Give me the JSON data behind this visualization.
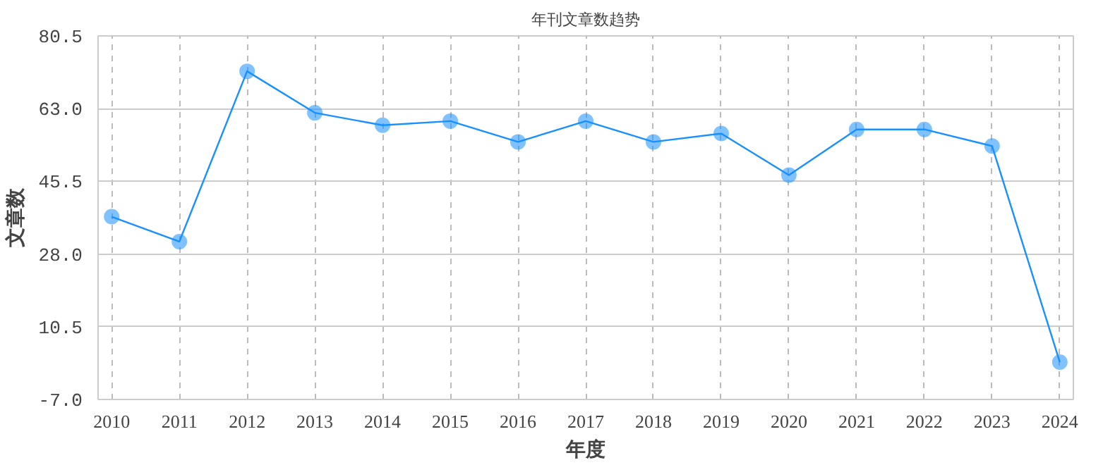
{
  "chart_data": {
    "type": "line",
    "title": "年刊文章数趋势",
    "xlabel": "年度",
    "ylabel": "文章数",
    "categories": [
      "2010",
      "2011",
      "2012",
      "2013",
      "2014",
      "2015",
      "2016",
      "2017",
      "2018",
      "2019",
      "2020",
      "2021",
      "2022",
      "2023",
      "2024"
    ],
    "series": [
      {
        "color": "#1890ff",
        "values": [
          37,
          31,
          72,
          62,
          59,
          60,
          55,
          60,
          55,
          57,
          47,
          58,
          58,
          54,
          2
        ]
      }
    ],
    "ylim": [
      -7.0,
      80.5
    ],
    "yticks": [
      {
        "value": -7.0,
        "label": "-7.0"
      },
      {
        "value": 10.5,
        "label": "10.5"
      },
      {
        "value": 28.0,
        "label": "28.0"
      },
      {
        "value": 45.5,
        "label": "45.5"
      },
      {
        "value": 63.0,
        "label": "63.0"
      },
      {
        "value": 80.5,
        "label": "80.5"
      }
    ],
    "grid": true,
    "marker": "circle",
    "line_style": "solid"
  }
}
